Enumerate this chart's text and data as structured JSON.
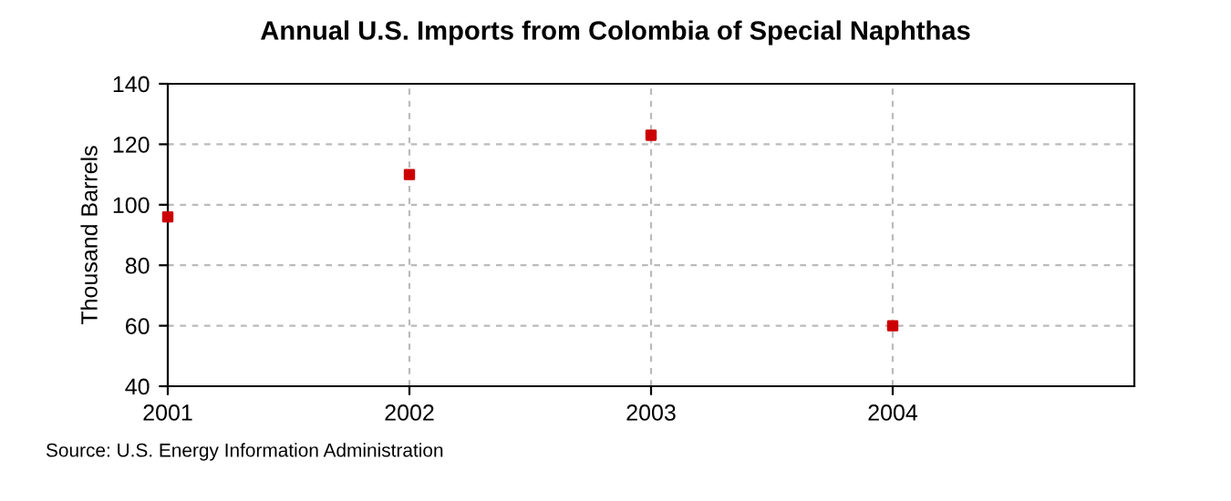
{
  "chart_data": {
    "type": "scatter",
    "title": "Annual U.S. Imports from Colombia of Special Naphthas",
    "ylabel": "Thousand Barrels",
    "x": [
      2001,
      2002,
      2003,
      2004
    ],
    "series": [
      {
        "color": "#cc0000",
        "values": [
          96,
          110,
          123,
          60
        ]
      }
    ],
    "xlim": [
      2001,
      2005
    ],
    "xticks": [
      2001,
      2002,
      2003,
      2004
    ],
    "ylim": [
      40,
      140
    ],
    "yticks": [
      40,
      60,
      80,
      100,
      120,
      140
    ],
    "grid": true,
    "marker": "square",
    "annotations": [
      "Source: U.S. Energy Information Administration"
    ]
  }
}
